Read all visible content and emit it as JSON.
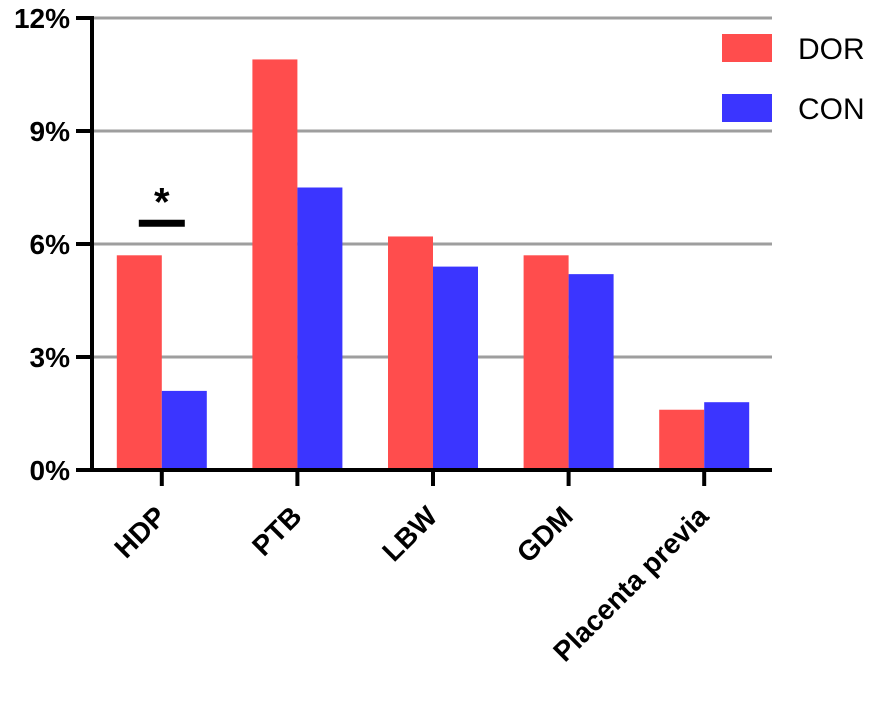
{
  "chart_data": {
    "type": "bar",
    "categories": [
      "HDP",
      "PTB",
      "LBW",
      "GDM",
      "Placenta previa"
    ],
    "series": [
      {
        "name": "DOR",
        "color": "#ff4d4d",
        "values": [
          5.7,
          10.9,
          6.2,
          5.7,
          1.6
        ]
      },
      {
        "name": "CON",
        "color": "#3b35ff",
        "values": [
          2.1,
          7.5,
          5.4,
          5.2,
          1.8
        ]
      }
    ],
    "ylim": [
      0,
      12
    ],
    "yticks": [
      0,
      3,
      6,
      9,
      12
    ],
    "ytick_labels": [
      "0%",
      "3%",
      "6%",
      "9%",
      "12%"
    ],
    "grid": true,
    "legend_position": "top-right",
    "annotations": [
      {
        "category": "HDP",
        "text": "*"
      }
    ]
  }
}
